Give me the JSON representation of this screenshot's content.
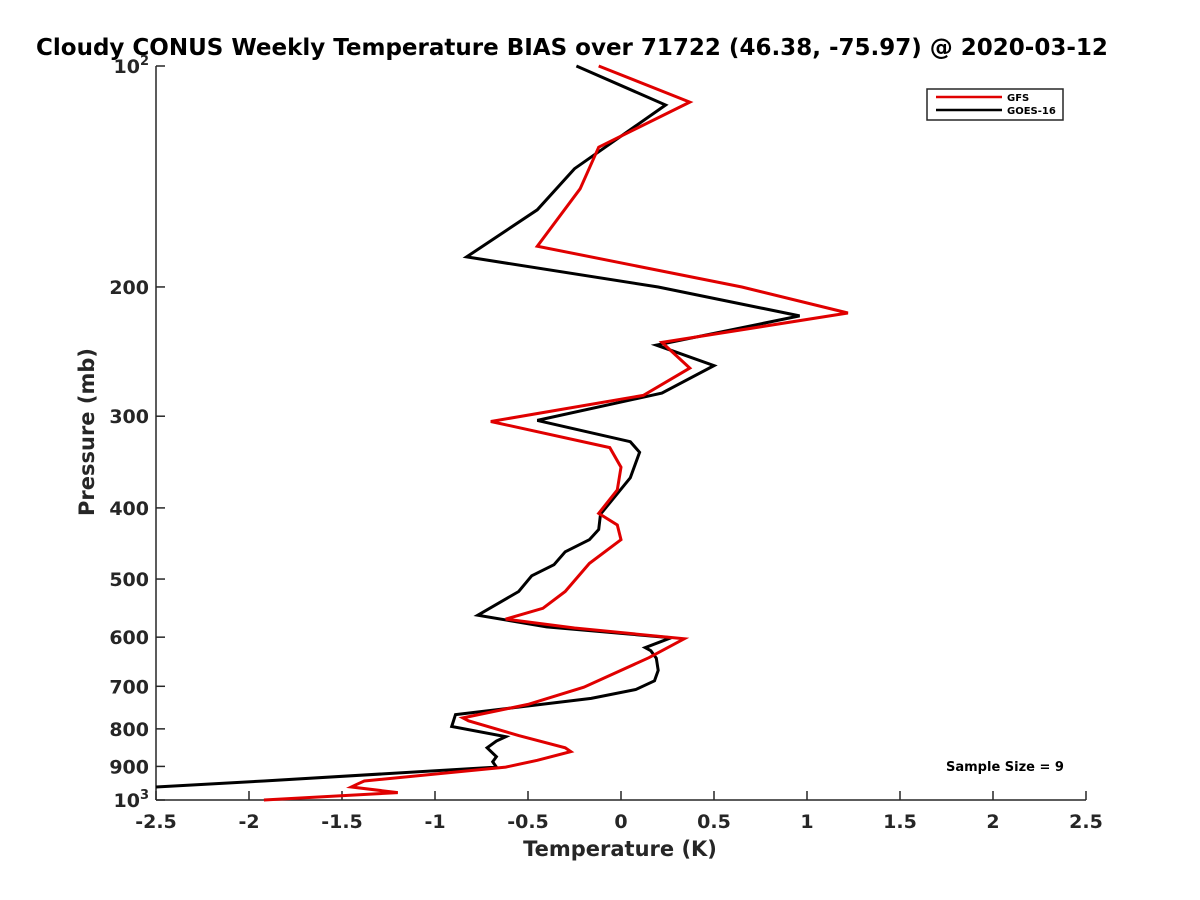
{
  "chart_data": {
    "type": "line",
    "title": "Cloudy CONUS Weekly Temperature BIAS over 71722 (46.38, -75.97) @ 2020-03-12",
    "xlabel": "Temperature (K)",
    "ylabel": "Pressure (mb)",
    "xlim": [
      -2.5,
      2.5
    ],
    "ylim": [
      100,
      1000
    ],
    "y_scale": "log",
    "y_reversed": true,
    "grid": false,
    "legend_position": "top-right",
    "x_ticks": [
      {
        "value": -2.5,
        "label": "-2.5"
      },
      {
        "value": -2,
        "label": "-2"
      },
      {
        "value": -1.5,
        "label": "-1.5"
      },
      {
        "value": -1,
        "label": "-1"
      },
      {
        "value": -0.5,
        "label": "-0.5"
      },
      {
        "value": 0,
        "label": "0"
      },
      {
        "value": 0.5,
        "label": "0.5"
      },
      {
        "value": 1,
        "label": "1"
      },
      {
        "value": 1.5,
        "label": "1.5"
      },
      {
        "value": 2,
        "label": "2"
      },
      {
        "value": 2.5,
        "label": "2.5"
      }
    ],
    "y_ticks": [
      {
        "value": 100,
        "label": "10",
        "sup": "2"
      },
      {
        "value": 200,
        "label": "200"
      },
      {
        "value": 300,
        "label": "300"
      },
      {
        "value": 400,
        "label": "400"
      },
      {
        "value": 500,
        "label": "500"
      },
      {
        "value": 600,
        "label": "600"
      },
      {
        "value": 700,
        "label": "700"
      },
      {
        "value": 800,
        "label": "800"
      },
      {
        "value": 900,
        "label": "900"
      },
      {
        "value": 1000,
        "label": "10",
        "sup": "3"
      }
    ],
    "series": [
      {
        "name": "GFS",
        "color": "#e00000",
        "points": [
          [
            -0.12,
            100
          ],
          [
            0.37,
            112
          ],
          [
            -0.12,
            129
          ],
          [
            -0.22,
            147
          ],
          [
            -0.45,
            176
          ],
          [
            0.65,
            200
          ],
          [
            1.22,
            217
          ],
          [
            0.22,
            238
          ],
          [
            0.37,
            258
          ],
          [
            0.12,
            281
          ],
          [
            -0.7,
            305
          ],
          [
            -0.06,
            331
          ],
          [
            0.0,
            352
          ],
          [
            -0.02,
            378
          ],
          [
            -0.12,
            407
          ],
          [
            -0.02,
            422
          ],
          [
            0.0,
            442
          ],
          [
            -0.17,
            476
          ],
          [
            -0.3,
            520
          ],
          [
            -0.42,
            548
          ],
          [
            -0.62,
            567
          ],
          [
            -0.25,
            583
          ],
          [
            0.34,
            603
          ],
          [
            0.15,
            640
          ],
          [
            -0.2,
            702
          ],
          [
            -0.5,
            741
          ],
          [
            -0.85,
            773
          ],
          [
            -0.82,
            780
          ],
          [
            -0.55,
            817
          ],
          [
            -0.3,
            849
          ],
          [
            -0.27,
            859
          ],
          [
            -0.45,
            883
          ],
          [
            -0.62,
            902
          ],
          [
            -1.38,
            942
          ],
          [
            -1.42,
            952
          ],
          [
            -1.45,
            960
          ],
          [
            -1.2,
            977
          ],
          [
            -1.92,
            1000
          ]
        ]
      },
      {
        "name": "GOES-16",
        "color": "#000000",
        "points": [
          [
            -0.24,
            100
          ],
          [
            0.24,
            113
          ],
          [
            -0.25,
            138
          ],
          [
            -0.45,
            157
          ],
          [
            -0.83,
            182
          ],
          [
            0.2,
            200
          ],
          [
            0.96,
            219
          ],
          [
            0.19,
            240
          ],
          [
            0.5,
            256
          ],
          [
            0.22,
            279
          ],
          [
            -0.45,
            304
          ],
          [
            0.05,
            325
          ],
          [
            0.1,
            336
          ],
          [
            0.05,
            364
          ],
          [
            -0.11,
            408
          ],
          [
            -0.12,
            428
          ],
          [
            -0.17,
            442
          ],
          [
            -0.3,
            459
          ],
          [
            -0.36,
            478
          ],
          [
            -0.48,
            495
          ],
          [
            -0.55,
            520
          ],
          [
            -0.77,
            560
          ],
          [
            -0.4,
            581
          ],
          [
            0.27,
            601
          ],
          [
            0.13,
            620
          ],
          [
            0.16,
            626
          ],
          [
            0.19,
            641
          ],
          [
            0.2,
            666
          ],
          [
            0.18,
            688
          ],
          [
            0.08,
            707
          ],
          [
            -0.16,
            727
          ],
          [
            -0.89,
            765
          ],
          [
            -0.91,
            794
          ],
          [
            -0.62,
            820
          ],
          [
            -0.67,
            831
          ],
          [
            -0.72,
            849
          ],
          [
            -0.67,
            873
          ],
          [
            -0.69,
            887
          ],
          [
            -0.67,
            902
          ],
          [
            -1.92,
            942
          ],
          [
            -2.5,
            960
          ]
        ]
      }
    ],
    "annotation": "Sample Size = 9"
  }
}
